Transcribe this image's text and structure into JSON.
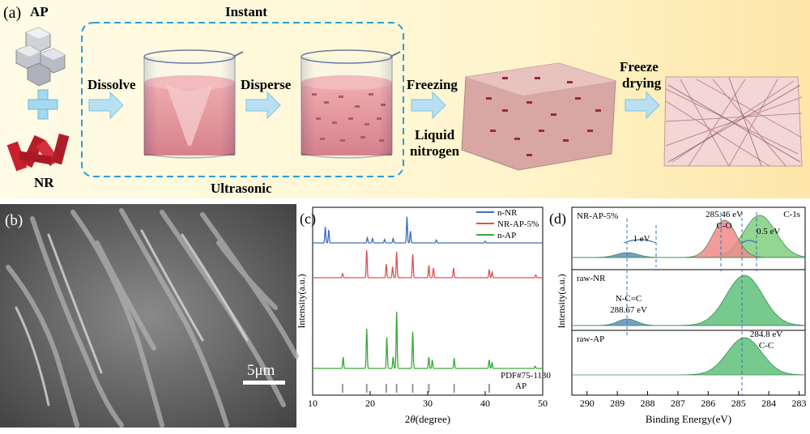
{
  "panel_a": {
    "label": "(a)",
    "ap": "AP",
    "nr": "NR",
    "instant": "Instant",
    "ultrasonic": "Ultrasonic",
    "dissolve": "Dissolve",
    "disperse": "Disperse",
    "freezing": "Freezing",
    "liquid": "Liquid",
    "nitrogen": "nitrogen",
    "freeze": "Freeze",
    "drying": "drying"
  },
  "panel_b": {
    "label": "(b)",
    "scale_bar": "5μm"
  },
  "panel_c": {
    "label": "(c)",
    "ylabel": "Intensity(a.u.)",
    "xlabel_prefix": "2",
    "xlabel_theta": "θ",
    "xlabel_suffix": "(degree)",
    "pdf_ref": "PDF#75-1130",
    "pdf_name": "AP"
  },
  "panel_d": {
    "label": "(d)",
    "sample_top": "NR-AP-5%",
    "c1s": "C-1s",
    "sample_mid": "raw-NR",
    "sample_bot": "raw-AP",
    "co_energy": "285.46 eV",
    "co_label": "C-O",
    "shift_1": "1 eV",
    "shift_05": "0.5 eV",
    "ncc_label": "N-C=C",
    "ncc_energy": "288.67 eV",
    "cc_energy": "284.8 eV",
    "cc_label": "C-C",
    "ylabel": "Intensity(a.u.)",
    "xlabel": "Binding Energy(eV)"
  },
  "chart_data": [
    {
      "type": "line",
      "panel": "(c)",
      "xlabel": "2θ(degree)",
      "ylabel": "Intensity(a.u.)",
      "xlim": [
        10,
        50
      ],
      "x_ticks": [
        10,
        20,
        30,
        40,
        50
      ],
      "legend_position": "top-right",
      "series": [
        {
          "name": "n-NR",
          "color": "#3d6fbf",
          "peaks": [
            [
              12.2,
              0.55
            ],
            [
              12.8,
              0.45
            ],
            [
              19.5,
              0.18
            ],
            [
              20.4,
              0.15
            ],
            [
              22.5,
              0.12
            ],
            [
              24.0,
              0.15
            ],
            [
              26.4,
              0.9
            ],
            [
              27.0,
              0.4
            ],
            [
              31.5,
              0.1
            ],
            [
              40.0,
              0.06
            ]
          ]
        },
        {
          "name": "NR-AP-5%",
          "color": "#e05252",
          "peaks": [
            [
              15.2,
              0.15
            ],
            [
              19.4,
              1.0
            ],
            [
              22.8,
              0.5
            ],
            [
              23.9,
              0.4
            ],
            [
              24.6,
              0.95
            ],
            [
              27.4,
              0.85
            ],
            [
              30.2,
              0.45
            ],
            [
              31.0,
              0.35
            ],
            [
              34.5,
              0.35
            ],
            [
              40.7,
              0.3
            ],
            [
              41.2,
              0.2
            ],
            [
              48.8,
              0.1
            ]
          ]
        },
        {
          "name": "n-AP",
          "color": "#3aa83a",
          "peaks": [
            [
              15.3,
              0.2
            ],
            [
              19.4,
              0.7
            ],
            [
              22.9,
              0.55
            ],
            [
              24.0,
              0.2
            ],
            [
              24.6,
              1.0
            ],
            [
              27.4,
              0.65
            ],
            [
              30.2,
              0.2
            ],
            [
              30.8,
              0.15
            ],
            [
              34.6,
              0.18
            ],
            [
              40.7,
              0.15
            ],
            [
              41.2,
              0.1
            ],
            [
              48.7,
              0.04
            ]
          ]
        }
      ],
      "reference": {
        "name": "PDF#75-1130 AP",
        "lines": [
          15.2,
          19.4,
          22.8,
          24.6,
          27.4,
          30.2,
          34.6,
          40.7
        ]
      }
    },
    {
      "type": "area",
      "panel": "(d)",
      "xlabel": "Binding Energy(eV)",
      "ylabel": "Intensity(a.u.)",
      "xlim": [
        290.5,
        282.8
      ],
      "x_ticks": [
        290,
        289,
        288,
        287,
        286,
        285,
        284,
        283
      ],
      "series": [
        {
          "name": "NR-AP-5%",
          "peaks": [
            {
              "center": 285.46,
              "label": "C-O",
              "color": "#f08a8a"
            },
            {
              "center": 284.3,
              "color": "#7fcf7f"
            },
            {
              "center": 288.67,
              "color": "#5f8fb8"
            }
          ]
        },
        {
          "name": "raw-NR",
          "peaks": [
            {
              "center": 284.8,
              "label": "C-C",
              "color": "#5fbf7a"
            },
            {
              "center": 288.67,
              "label": "N-C=C",
              "color": "#5f8fb8"
            }
          ]
        },
        {
          "name": "raw-AP",
          "peaks": [
            {
              "center": 284.8,
              "label": "C-C",
              "color": "#5fbf7a"
            }
          ]
        }
      ],
      "annotations": [
        "285.46 eV C-O",
        "1 eV",
        "0.5 eV",
        "N-C=C 288.67 eV",
        "284.8 eV C-C"
      ]
    }
  ]
}
